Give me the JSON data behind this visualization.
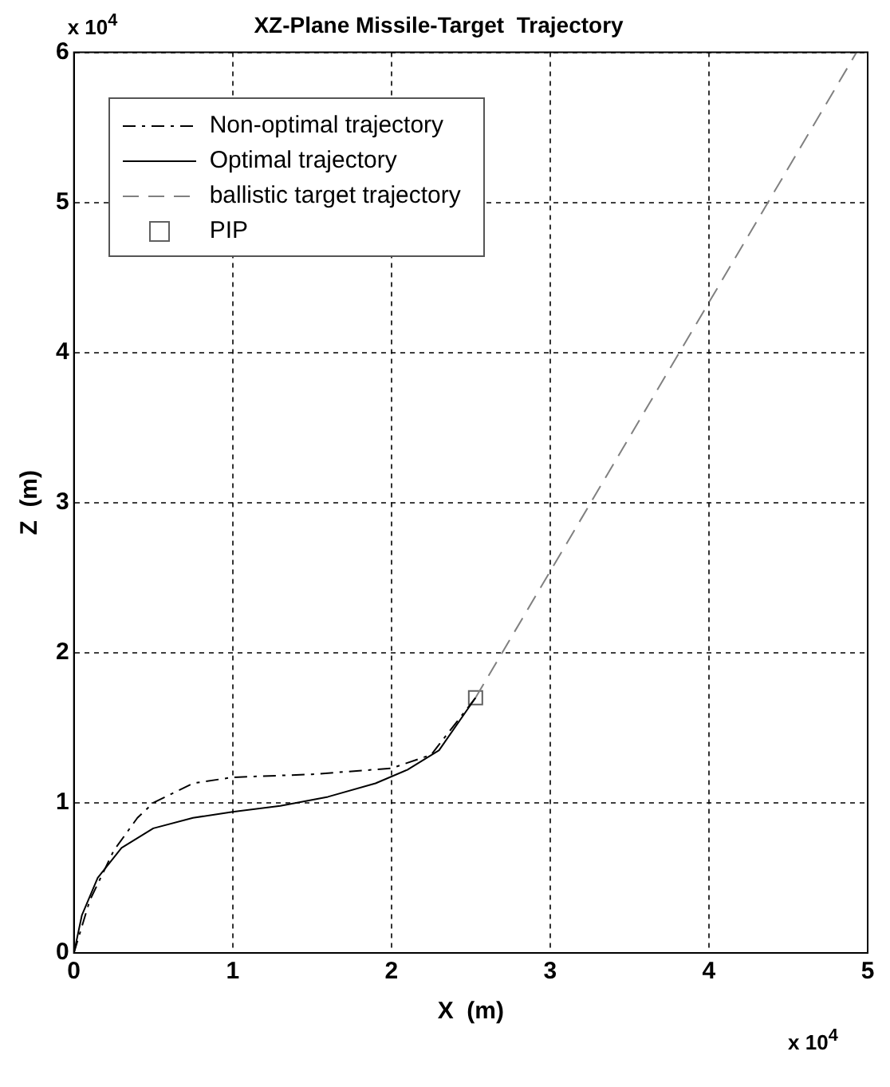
{
  "chart_data": {
    "type": "line",
    "title": "XZ-Plane Missile-Target  Trajectory",
    "xlabel": "X  (m)",
    "ylabel": "Z  (m)",
    "annotations": [
      "x 10$^{4}$",
      "x 10$^{4}$"
    ],
    "xlim": [
      0,
      5
    ],
    "ylim": [
      0,
      6
    ],
    "xticks": [
      0,
      1,
      2,
      3,
      4,
      5
    ],
    "yticks": [
      0,
      1,
      2,
      3,
      4,
      5,
      6
    ],
    "grid": true,
    "legend": "top left",
    "series": [
      {
        "name": "Non-optimal trajectory",
        "color": "#000000",
        "line_style": "dashdot",
        "marker": "none",
        "x": [
          0,
          0.1,
          0.25,
          0.4,
          0.5,
          0.75,
          1,
          1.5,
          2,
          2.25,
          2.53
        ],
        "values": [
          0,
          0.35,
          0.68,
          0.9,
          1,
          1.13,
          1.17,
          1.19,
          1.23,
          1.32,
          1.7
        ]
      },
      {
        "name": "Optimal trajectory",
        "color": "#000000",
        "line_style": "solid",
        "marker": "none",
        "x": [
          0,
          0.05,
          0.15,
          0.3,
          0.5,
          0.75,
          1,
          1.3,
          1.6,
          1.9,
          2.1,
          2.3,
          2.53
        ],
        "values": [
          0,
          0.25,
          0.5,
          0.7,
          0.83,
          0.9,
          0.94,
          0.98,
          1.04,
          1.13,
          1.22,
          1.35,
          1.7
        ]
      },
      {
        "name": "ballistic target trajectory",
        "color": "#808080",
        "line_style": "dashed",
        "marker": "none",
        "x": [
          2.53,
          4.93
        ],
        "values": [
          1.7,
          6
        ]
      },
      {
        "name": "PIP",
        "type": "scatter",
        "color": "#606060",
        "marker": "square",
        "x": [
          2.53
        ],
        "values": [
          1.7
        ]
      }
    ]
  }
}
